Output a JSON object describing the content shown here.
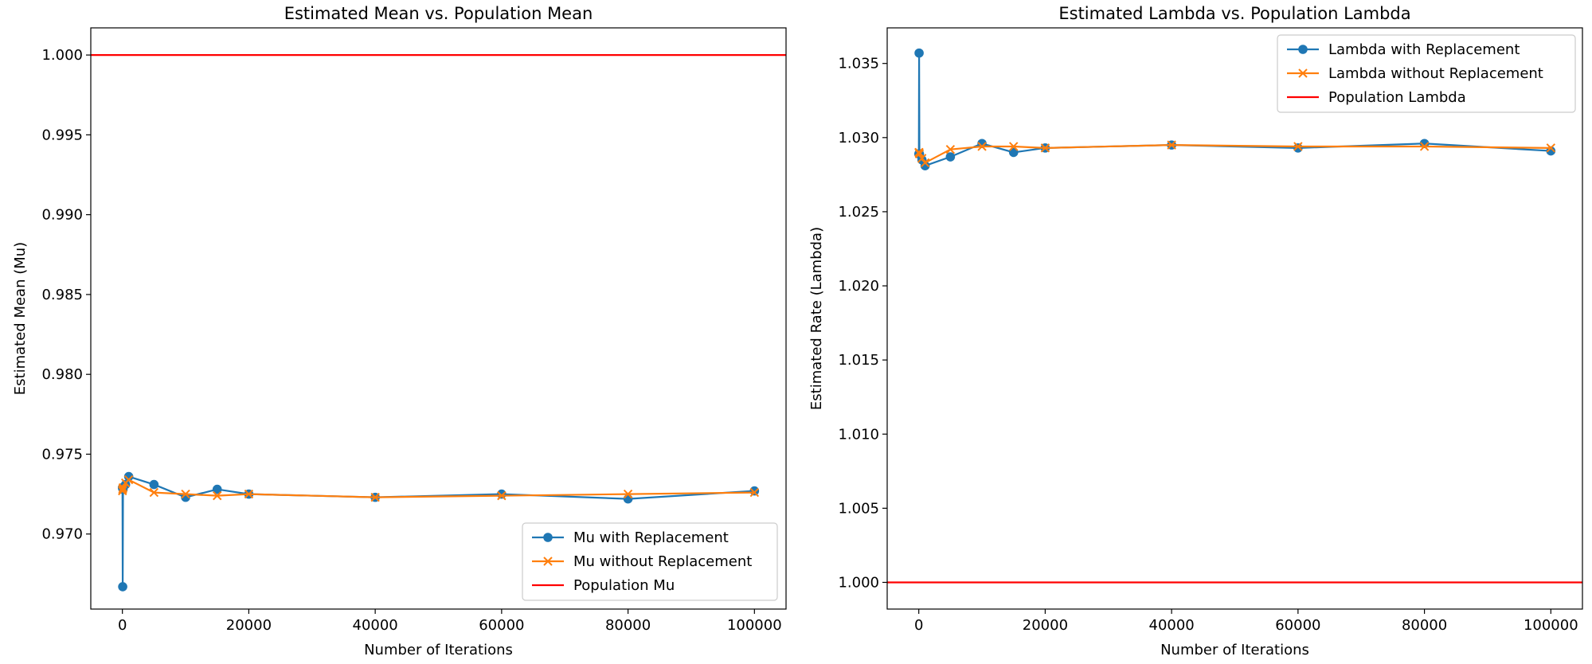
{
  "chart_data": [
    {
      "type": "line",
      "title": "Estimated Mean vs. Population Mean",
      "xlabel": "Number of Iterations",
      "ylabel": "Estimated Mean (Mu)",
      "xlim": [
        -5000,
        105000
      ],
      "ylim": [
        0.9653,
        1.0017
      ],
      "x_ticks": [
        0,
        20000,
        40000,
        60000,
        80000,
        100000
      ],
      "x_tick_labels": [
        "0",
        "20000",
        "40000",
        "60000",
        "80000",
        "100000"
      ],
      "y_ticks": [
        0.97,
        0.975,
        0.98,
        0.985,
        0.99,
        0.995,
        1.0
      ],
      "y_tick_labels": [
        "0.970",
        "0.975",
        "0.980",
        "0.985",
        "0.990",
        "0.995",
        "1.000"
      ],
      "grid": false,
      "legend_position": "lower-right",
      "series": [
        {
          "name": "Mu with Replacement",
          "color": "#1f77b4",
          "marker": "circle",
          "x": [
            10,
            50,
            100,
            500,
            1000,
            5000,
            10000,
            15000,
            20000,
            40000,
            60000,
            80000,
            100000
          ],
          "y": [
            0.9729,
            0.9667,
            0.9728,
            0.9731,
            0.9736,
            0.9731,
            0.9723,
            0.9728,
            0.9725,
            0.9723,
            0.9725,
            0.9722,
            0.9727
          ]
        },
        {
          "name": "Mu without Replacement",
          "color": "#ff7f0e",
          "marker": "x",
          "x": [
            10,
            50,
            100,
            500,
            1000,
            5000,
            10000,
            15000,
            20000,
            40000,
            60000,
            80000,
            100000
          ],
          "y": [
            0.9727,
            0.9728,
            0.9729,
            0.9732,
            0.9734,
            0.9726,
            0.9725,
            0.9724,
            0.9725,
            0.9723,
            0.9724,
            0.9725,
            0.9726
          ]
        },
        {
          "name": "Population Mu",
          "color": "#ff0000",
          "type": "hline",
          "y": 1.0
        }
      ]
    },
    {
      "type": "line",
      "title": "Estimated Lambda vs. Population Lambda",
      "xlabel": "Number of Iterations",
      "ylabel": "Estimated Rate (Lambda)",
      "xlim": [
        -5000,
        105000
      ],
      "ylim": [
        0.9982,
        1.0374
      ],
      "x_ticks": [
        0,
        20000,
        40000,
        60000,
        80000,
        100000
      ],
      "x_tick_labels": [
        "0",
        "20000",
        "40000",
        "60000",
        "80000",
        "100000"
      ],
      "y_ticks": [
        1.0,
        1.005,
        1.01,
        1.015,
        1.02,
        1.025,
        1.03,
        1.035
      ],
      "y_tick_labels": [
        "1.000",
        "1.005",
        "1.010",
        "1.015",
        "1.020",
        "1.025",
        "1.030",
        "1.035"
      ],
      "grid": false,
      "legend_position": "upper-right",
      "series": [
        {
          "name": "Lambda with Replacement",
          "color": "#1f77b4",
          "marker": "circle",
          "x": [
            10,
            50,
            100,
            500,
            1000,
            5000,
            10000,
            15000,
            20000,
            40000,
            60000,
            80000,
            100000
          ],
          "y": [
            1.0289,
            1.0357,
            1.0289,
            1.0285,
            1.0281,
            1.0287,
            1.0296,
            1.029,
            1.0293,
            1.0295,
            1.0293,
            1.0296,
            1.0291
          ]
        },
        {
          "name": "Lambda without Replacement",
          "color": "#ff7f0e",
          "marker": "x",
          "x": [
            10,
            50,
            100,
            500,
            1000,
            5000,
            10000,
            15000,
            20000,
            40000,
            60000,
            80000,
            100000
          ],
          "y": [
            1.029,
            1.029,
            1.0289,
            1.0286,
            1.0283,
            1.0292,
            1.0294,
            1.0294,
            1.0293,
            1.0295,
            1.0294,
            1.0294,
            1.0293
          ]
        },
        {
          "name": "Population Lambda",
          "color": "#ff0000",
          "type": "hline",
          "y": 1.0
        }
      ]
    }
  ]
}
